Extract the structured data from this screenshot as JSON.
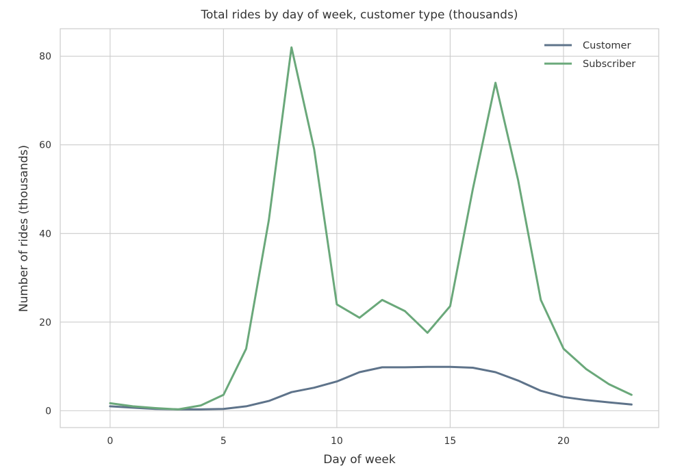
{
  "chart_data": {
    "type": "line",
    "title": "Total rides by day of week, customer type (thousands)",
    "xlabel": "Day of week",
    "ylabel": "Number of rides (thousands)",
    "xlim": [
      -2.2,
      24.2
    ],
    "ylim": [
      -3.8,
      86.2
    ],
    "xticks": [
      0,
      5,
      10,
      15,
      20
    ],
    "yticks": [
      0,
      20,
      40,
      60,
      80
    ],
    "grid": true,
    "legend_position": "top-right",
    "x": [
      0,
      1,
      2,
      3,
      4,
      5,
      6,
      7,
      8,
      9,
      10,
      11,
      12,
      13,
      14,
      15,
      16,
      17,
      18,
      19,
      20,
      21,
      22,
      23
    ],
    "series": [
      {
        "name": "Customer",
        "color": "#5e738a",
        "values": [
          1.0,
          0.7,
          0.4,
          0.3,
          0.3,
          0.4,
          1.0,
          2.2,
          4.2,
          5.2,
          6.6,
          8.7,
          9.8,
          9.8,
          9.9,
          9.9,
          9.7,
          8.7,
          6.8,
          4.5,
          3.1,
          2.4,
          1.9,
          1.4
        ]
      },
      {
        "name": "Subscriber",
        "color": "#6aa87a",
        "values": [
          1.7,
          1.0,
          0.6,
          0.3,
          1.2,
          3.6,
          14.0,
          43.0,
          82.0,
          59.0,
          24.0,
          21.0,
          25.0,
          22.5,
          17.6,
          23.6,
          50.0,
          74.0,
          52.0,
          25.0,
          14.0,
          9.4,
          6.0,
          3.6
        ]
      }
    ]
  }
}
